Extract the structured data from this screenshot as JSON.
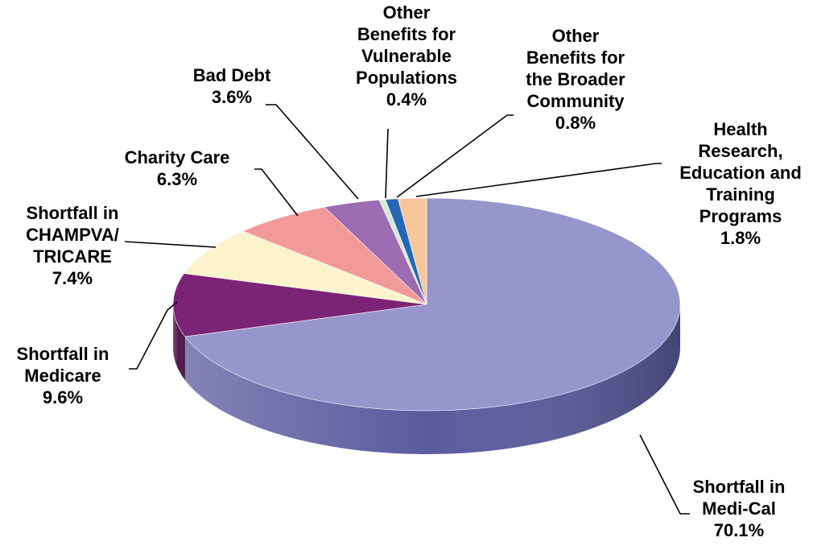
{
  "chart_data": {
    "type": "pie",
    "title": "",
    "unit": "%",
    "slices": [
      {
        "label_lines": [
          "Shortfall in",
          "Medi-Cal"
        ],
        "value_text": "70.1%",
        "value": 70.1,
        "color": "#9696CC",
        "side_color": "#5A5A9E"
      },
      {
        "label_lines": [
          "Shortfall in",
          "Medicare"
        ],
        "value_text": "9.6%",
        "value": 9.6,
        "color": "#7B2475",
        "side_color": "#4F1449"
      },
      {
        "label_lines": [
          "Shortfall in",
          "CHAMPVA/",
          "TRICARE"
        ],
        "value_text": "7.4%",
        "value": 7.4,
        "color": "#FBF3CC",
        "side_color": "#D9CFA0"
      },
      {
        "label_lines": [
          "Charity Care"
        ],
        "value_text": "6.3%",
        "value": 6.3,
        "color": "#F29A9A",
        "side_color": "#C46F6F"
      },
      {
        "label_lines": [
          "Bad Debt"
        ],
        "value_text": "3.6%",
        "value": 3.6,
        "color": "#9C6BB1",
        "side_color": "#6E4783"
      },
      {
        "label_lines": [
          "Other",
          "Benefits for",
          "Vulnerable",
          "Populations"
        ],
        "value_text": "0.4%",
        "value": 0.4,
        "color": "#D7E8D2",
        "side_color": "#A6B9A1"
      },
      {
        "label_lines": [
          "Other",
          "Benefits for",
          "the Broader",
          "Community"
        ],
        "value_text": "0.8%",
        "value": 0.8,
        "color": "#2467B5",
        "side_color": "#174682"
      },
      {
        "label_lines": [
          "Health",
          "Research,",
          "Education and",
          "Training",
          "Programs"
        ],
        "value_text": "1.8%",
        "value": 1.8,
        "color": "#F7C79B",
        "side_color": "#C99A70"
      }
    ]
  }
}
